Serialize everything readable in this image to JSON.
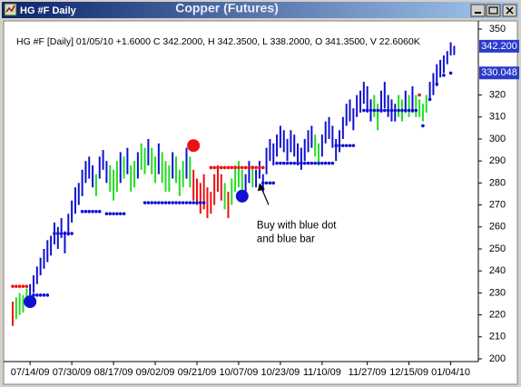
{
  "window_title": "HG #F Daily",
  "chart_data": {
    "type": "ohlc",
    "title": "Copper (Futures)",
    "subtitle": "HG #F [Daily] 01/05/10 +1.6000 C 342.2000, H 342.3500, L 338.2000, O 341.3500, V 22.6060K",
    "ylim": [
      200,
      350
    ],
    "yticks": [
      350,
      320,
      310,
      300,
      290,
      280,
      270,
      260,
      250,
      240,
      230,
      220,
      210,
      200
    ],
    "xlim": [
      0,
      127
    ],
    "xticks": [
      {
        "value": 5,
        "label": "07/14/09"
      },
      {
        "value": 17,
        "label": "07/30/09"
      },
      {
        "value": 29,
        "label": "08/17/09"
      },
      {
        "value": 41,
        "label": "09/02/09"
      },
      {
        "value": 53,
        "label": "09/21/09"
      },
      {
        "value": 65,
        "label": "10/07/09"
      },
      {
        "value": 77,
        "label": "10/23/09"
      },
      {
        "value": 89,
        "label": "11/10/09"
      },
      {
        "value": 102,
        "label": "11/27/09"
      },
      {
        "value": 114,
        "label": "12/15/09"
      },
      {
        "value": 126,
        "label": "01/04/10"
      }
    ],
    "bars": {
      "high": [
        226,
        228,
        230,
        229,
        232,
        234,
        238,
        242,
        246,
        250,
        254,
        256,
        262,
        260,
        264,
        258,
        266,
        272,
        278,
        280,
        286,
        290,
        292,
        288,
        284,
        292,
        295,
        290,
        288,
        286,
        290,
        294,
        292,
        296,
        288,
        290,
        294,
        298,
        296,
        300,
        296,
        292,
        298,
        294,
        290,
        288,
        294,
        292,
        286,
        290,
        296,
        292,
        286,
        282,
        280,
        284,
        278,
        276,
        284,
        288,
        284,
        280,
        276,
        282,
        288,
        290,
        286,
        284,
        290,
        288,
        286,
        290,
        284,
        296,
        300,
        298,
        302,
        306,
        304,
        300,
        304,
        302,
        298,
        296,
        300,
        304,
        306,
        302,
        298,
        302,
        308,
        310,
        306,
        300,
        304,
        310,
        316,
        318,
        314,
        320,
        322,
        326,
        324,
        318,
        320,
        316,
        322,
        326,
        320,
        318,
        316,
        320,
        318,
        322,
        320,
        324,
        320,
        318,
        316,
        320,
        326,
        330,
        334,
        336,
        338,
        340,
        344,
        342.35
      ],
      "low": [
        215,
        218,
        220,
        221,
        224,
        226,
        230,
        234,
        238,
        241,
        244,
        247,
        252,
        250,
        255,
        248,
        256,
        262,
        266,
        270,
        274,
        280,
        282,
        278,
        274,
        282,
        286,
        280,
        276,
        272,
        276,
        280,
        282,
        284,
        276,
        278,
        282,
        286,
        284,
        288,
        284,
        280,
        284,
        280,
        276,
        276,
        282,
        280,
        274,
        278,
        282,
        278,
        272,
        270,
        266,
        268,
        264,
        266,
        270,
        276,
        272,
        268,
        264,
        270,
        276,
        278,
        272,
        274,
        280,
        278,
        278,
        282,
        276,
        284,
        290,
        288,
        292,
        296,
        294,
        290,
        294,
        292,
        288,
        286,
        290,
        294,
        296,
        292,
        288,
        292,
        298,
        300,
        296,
        290,
        294,
        300,
        306,
        308,
        304,
        310,
        312,
        316,
        312,
        308,
        310,
        304,
        312,
        314,
        310,
        308,
        308,
        310,
        308,
        312,
        310,
        312,
        310,
        310,
        308,
        312,
        318,
        320,
        324,
        328,
        330,
        334,
        338,
        338.2
      ],
      "colors": [
        "#ee1111",
        "#22dd22",
        "#22dd22",
        "#22dd22",
        "#22dd22",
        "#1010d0",
        "#1010d0",
        "#1010d0",
        "#1010d0",
        "#1010d0",
        "#1010d0",
        "#1010d0",
        "#1010d0",
        "#1010d0",
        "#1010d0",
        "#1010d0",
        "#1010d0",
        "#1010d0",
        "#1010d0",
        "#1010d0",
        "#1010d0",
        "#1010d0",
        "#1010d0",
        "#1010d0",
        "#22dd22",
        "#1010d0",
        "#1010d0",
        "#1010d0",
        "#22dd22",
        "#22dd22",
        "#22dd22",
        "#1010d0",
        "#22dd22",
        "#1010d0",
        "#22dd22",
        "#22dd22",
        "#1010d0",
        "#22dd22",
        "#22dd22",
        "#1010d0",
        "#22dd22",
        "#22dd22",
        "#1010d0",
        "#22dd22",
        "#22dd22",
        "#22dd22",
        "#1010d0",
        "#22dd22",
        "#22dd22",
        "#22dd22",
        "#1010d0",
        "#22dd22",
        "#ee1111",
        "#ee1111",
        "#ee1111",
        "#ee1111",
        "#ee1111",
        "#ee1111",
        "#ee1111",
        "#ee1111",
        "#ee1111",
        "#22dd22",
        "#ee1111",
        "#22dd22",
        "#22dd22",
        "#22dd22",
        "#22dd22",
        "#1010d0",
        "#1010d0",
        "#22dd22",
        "#1010d0",
        "#1010d0",
        "#1010d0",
        "#1010d0",
        "#1010d0",
        "#1010d0",
        "#1010d0",
        "#1010d0",
        "#1010d0",
        "#1010d0",
        "#1010d0",
        "#1010d0",
        "#1010d0",
        "#1010d0",
        "#1010d0",
        "#1010d0",
        "#1010d0",
        "#22dd22",
        "#22dd22",
        "#1010d0",
        "#1010d0",
        "#1010d0",
        "#1010d0",
        "#1010d0",
        "#1010d0",
        "#1010d0",
        "#1010d0",
        "#1010d0",
        "#1010d0",
        "#1010d0",
        "#1010d0",
        "#1010d0",
        "#1010d0",
        "#1010d0",
        "#22dd22",
        "#22dd22",
        "#1010d0",
        "#1010d0",
        "#1010d0",
        "#1010d0",
        "#1010d0",
        "#22dd22",
        "#22dd22",
        "#1010d0",
        "#22dd22",
        "#1010d0",
        "#22dd22",
        "#22dd22",
        "#22dd22",
        "#22dd22",
        "#1010d0",
        "#1010d0",
        "#1010d0",
        "#1010d0",
        "#1010d0",
        "#1010d0",
        "#1010d0",
        "#1010d0"
      ]
    },
    "stop_dots": [
      {
        "start": 0,
        "end": 4,
        "value": 233,
        "color": "#ee1111"
      },
      {
        "start": 6,
        "end": 10,
        "value": 229,
        "color": "#1010d0"
      },
      {
        "start": 12,
        "end": 17,
        "value": 257,
        "color": "#1010d0"
      },
      {
        "start": 20,
        "end": 25,
        "value": 267,
        "color": "#1010d0"
      },
      {
        "start": 27,
        "end": 32,
        "value": 266,
        "color": "#1010d0"
      },
      {
        "start": 38,
        "end": 55,
        "value": 271,
        "color": "#1010d0"
      },
      {
        "start": 51,
        "end": 53,
        "value": 298,
        "color": "#ee1111"
      },
      {
        "start": 57,
        "end": 72,
        "value": 287,
        "color": "#ee1111"
      },
      {
        "start": 72,
        "end": 75,
        "value": 280,
        "color": "#1010d0"
      },
      {
        "start": 76,
        "end": 92,
        "value": 289,
        "color": "#1010d0"
      },
      {
        "start": 93,
        "end": 98,
        "value": 297,
        "color": "#1010d0"
      },
      {
        "start": 101,
        "end": 116,
        "value": 313,
        "color": "#1010d0"
      },
      {
        "start": 117,
        "end": 117,
        "value": 320,
        "color": "#ee1111"
      },
      {
        "start": 118,
        "end": 118,
        "value": 306,
        "color": "#1010d0"
      },
      {
        "start": 120,
        "end": 120,
        "value": 318,
        "color": "#1010d0"
      },
      {
        "start": 122,
        "end": 122,
        "value": 325,
        "color": "#1010d0"
      },
      {
        "start": 124,
        "end": 124,
        "value": 329,
        "color": "#1010d0"
      },
      {
        "start": 126,
        "end": 126,
        "value": 330,
        "color": "#1010d0"
      }
    ],
    "signals": [
      {
        "x": 5,
        "value": 226,
        "color": "#1010d0"
      },
      {
        "x": 52,
        "value": 297,
        "color": "#ee1111"
      },
      {
        "x": 66,
        "value": 274,
        "color": "#1010d0"
      }
    ],
    "price_labels": [
      {
        "value": 342.2,
        "label": "342.200"
      },
      {
        "value": 330.048,
        "label": "330.048"
      }
    ],
    "annotation": {
      "x": 71,
      "value": 280,
      "lines": [
        "Buy with blue dot",
        "and blue bar"
      ]
    }
  }
}
